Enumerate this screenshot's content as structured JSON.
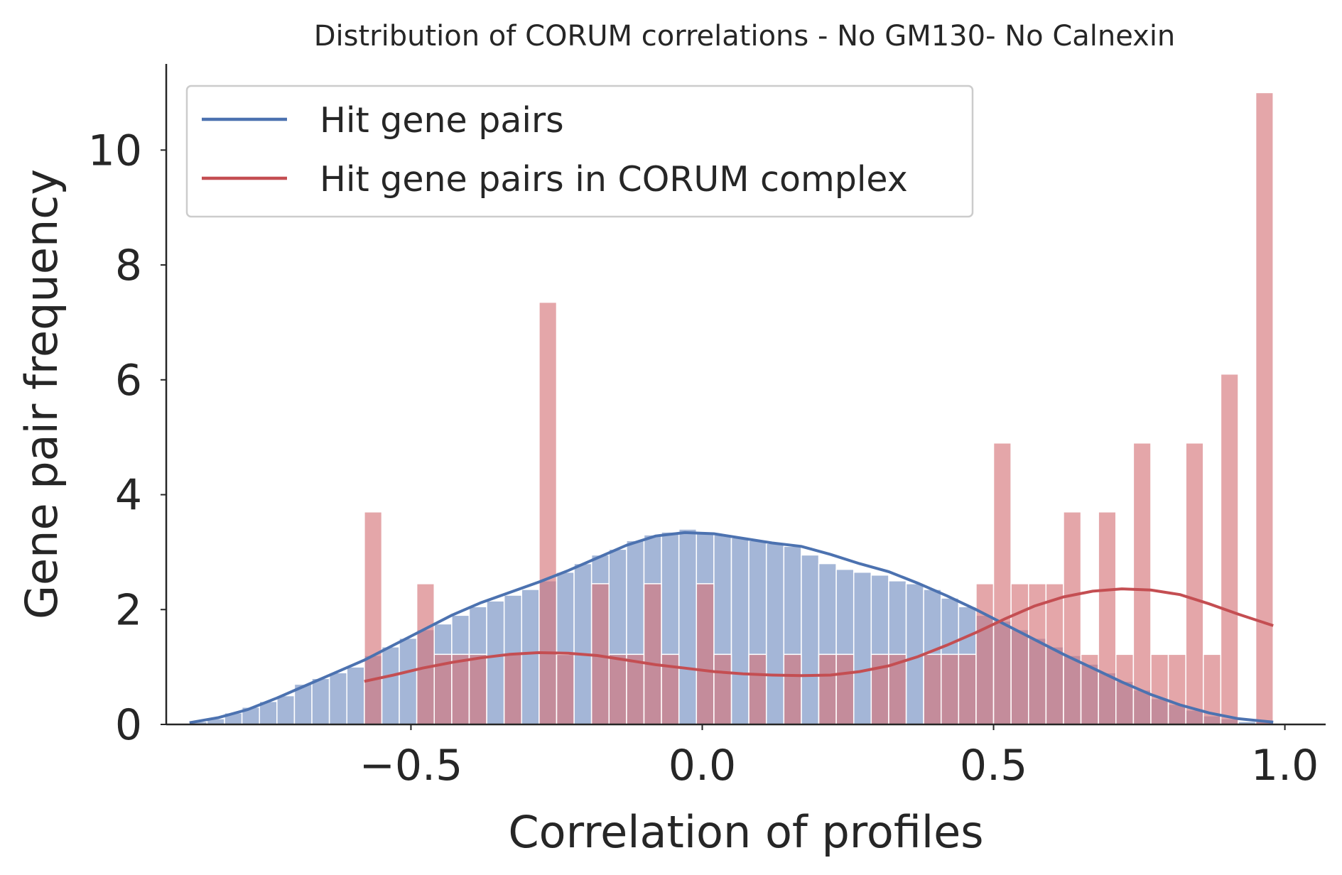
{
  "chart_data": {
    "type": "histogram",
    "title": "Distribution of CORUM correlations - No GM130- No Calnexin",
    "xlabel": "Correlation of profiles",
    "ylabel": "Gene pair frequency",
    "xlim": [
      -0.92,
      1.07
    ],
    "ylim": [
      0,
      11.5
    ],
    "xticks": [
      -0.5,
      0.0,
      0.5,
      1.0
    ],
    "xtick_labels": [
      "−0.5",
      "0.0",
      "0.5",
      "1.0"
    ],
    "yticks": [
      0,
      2,
      4,
      6,
      8,
      10
    ],
    "ytick_labels": [
      "0",
      "2",
      "4",
      "6",
      "8",
      "10"
    ],
    "grid": false,
    "legend_position": "top-left",
    "colors": {
      "hit_line": "#4c72b0",
      "hit_bar": "#a2b5d6",
      "corum_line": "#c44e52",
      "corum_bar": "#d6777b",
      "axis": "#262626",
      "legend_border": "#cccccc"
    },
    "series": [
      {
        "name": "Hit gene pairs",
        "kind": "histogram+kde",
        "bin_edges": [
          -0.88,
          -0.85,
          -0.82,
          -0.79,
          -0.76,
          -0.73,
          -0.7,
          -0.67,
          -0.64,
          -0.61,
          -0.58,
          -0.55,
          -0.52,
          -0.49,
          -0.46,
          -0.43,
          -0.4,
          -0.37,
          -0.34,
          -0.31,
          -0.28,
          -0.25,
          -0.22,
          -0.19,
          -0.16,
          -0.13,
          -0.1,
          -0.07,
          -0.04,
          -0.01,
          0.02,
          0.05,
          0.08,
          0.11,
          0.14,
          0.17,
          0.2,
          0.23,
          0.26,
          0.29,
          0.32,
          0.35,
          0.38,
          0.41,
          0.44,
          0.47,
          0.5,
          0.53,
          0.56,
          0.59,
          0.62,
          0.65,
          0.68,
          0.71,
          0.74,
          0.77,
          0.8,
          0.83,
          0.86,
          0.89,
          0.92,
          0.95,
          0.98
        ],
        "counts": [
          0.05,
          0.1,
          0.2,
          0.3,
          0.4,
          0.5,
          0.7,
          0.8,
          0.9,
          1.0,
          1.2,
          1.35,
          1.5,
          1.65,
          1.75,
          1.9,
          2.05,
          2.15,
          2.25,
          2.35,
          2.5,
          2.65,
          2.8,
          2.95,
          3.05,
          3.2,
          3.3,
          3.35,
          3.4,
          3.35,
          3.3,
          3.25,
          3.2,
          3.15,
          3.1,
          2.95,
          2.8,
          2.7,
          2.65,
          2.6,
          2.5,
          2.45,
          2.35,
          2.2,
          2.05,
          1.9,
          1.8,
          1.65,
          1.5,
          1.35,
          1.2,
          1.05,
          0.9,
          0.75,
          0.6,
          0.45,
          0.35,
          0.25,
          0.15,
          0.1,
          0.05,
          0.05
        ],
        "kde_x": [
          -0.88,
          -0.83,
          -0.78,
          -0.73,
          -0.68,
          -0.63,
          -0.58,
          -0.53,
          -0.48,
          -0.43,
          -0.38,
          -0.33,
          -0.28,
          -0.23,
          -0.18,
          -0.13,
          -0.08,
          -0.03,
          0.02,
          0.07,
          0.12,
          0.17,
          0.22,
          0.27,
          0.32,
          0.37,
          0.42,
          0.47,
          0.52,
          0.57,
          0.62,
          0.67,
          0.72,
          0.77,
          0.82,
          0.87,
          0.92,
          0.98
        ],
        "kde_y": [
          0.03,
          0.12,
          0.26,
          0.46,
          0.68,
          0.9,
          1.12,
          1.38,
          1.64,
          1.9,
          2.12,
          2.3,
          2.48,
          2.68,
          2.9,
          3.12,
          3.28,
          3.34,
          3.32,
          3.24,
          3.16,
          3.1,
          2.96,
          2.8,
          2.66,
          2.46,
          2.24,
          2.0,
          1.74,
          1.48,
          1.22,
          0.98,
          0.74,
          0.52,
          0.34,
          0.2,
          0.1,
          0.04
        ]
      },
      {
        "name": "Hit gene pairs in CORUM complex",
        "kind": "histogram+kde",
        "bin_edges": [
          -0.58,
          -0.55,
          -0.52,
          -0.49,
          -0.46,
          -0.43,
          -0.4,
          -0.37,
          -0.34,
          -0.31,
          -0.28,
          -0.25,
          -0.22,
          -0.19,
          -0.16,
          -0.13,
          -0.1,
          -0.07,
          -0.04,
          -0.01,
          0.02,
          0.05,
          0.08,
          0.11,
          0.14,
          0.17,
          0.2,
          0.23,
          0.26,
          0.29,
          0.32,
          0.35,
          0.38,
          0.41,
          0.44,
          0.47,
          0.5,
          0.53,
          0.56,
          0.59,
          0.62,
          0.65,
          0.68,
          0.71,
          0.74,
          0.77,
          0.8,
          0.83,
          0.86,
          0.89,
          0.92,
          0.95,
          0.98
        ],
        "counts": [
          3.7,
          0,
          0,
          2.45,
          1.22,
          1.22,
          1.22,
          0,
          1.22,
          0,
          7.35,
          1.22,
          0,
          2.45,
          1.22,
          1.22,
          2.45,
          1.22,
          0,
          2.45,
          1.22,
          0,
          1.22,
          0,
          1.22,
          0,
          1.22,
          1.22,
          0,
          1.22,
          1.22,
          0,
          1.22,
          1.22,
          1.22,
          2.45,
          4.9,
          2.45,
          2.45,
          2.45,
          3.7,
          1.22,
          3.7,
          1.22,
          4.9,
          1.22,
          1.22,
          4.9,
          1.22,
          6.1,
          0,
          11.0
        ],
        "kde_x": [
          -0.58,
          -0.53,
          -0.48,
          -0.43,
          -0.38,
          -0.33,
          -0.28,
          -0.23,
          -0.18,
          -0.13,
          -0.08,
          -0.03,
          0.02,
          0.07,
          0.12,
          0.17,
          0.22,
          0.27,
          0.32,
          0.37,
          0.42,
          0.47,
          0.52,
          0.57,
          0.62,
          0.67,
          0.72,
          0.77,
          0.82,
          0.87,
          0.92,
          0.98
        ],
        "kde_y": [
          0.75,
          0.86,
          0.98,
          1.08,
          1.16,
          1.22,
          1.25,
          1.24,
          1.2,
          1.12,
          1.04,
          0.98,
          0.92,
          0.88,
          0.86,
          0.85,
          0.86,
          0.92,
          1.02,
          1.18,
          1.38,
          1.6,
          1.84,
          2.06,
          2.22,
          2.32,
          2.36,
          2.34,
          2.26,
          2.1,
          1.92,
          1.72
        ]
      }
    ]
  }
}
